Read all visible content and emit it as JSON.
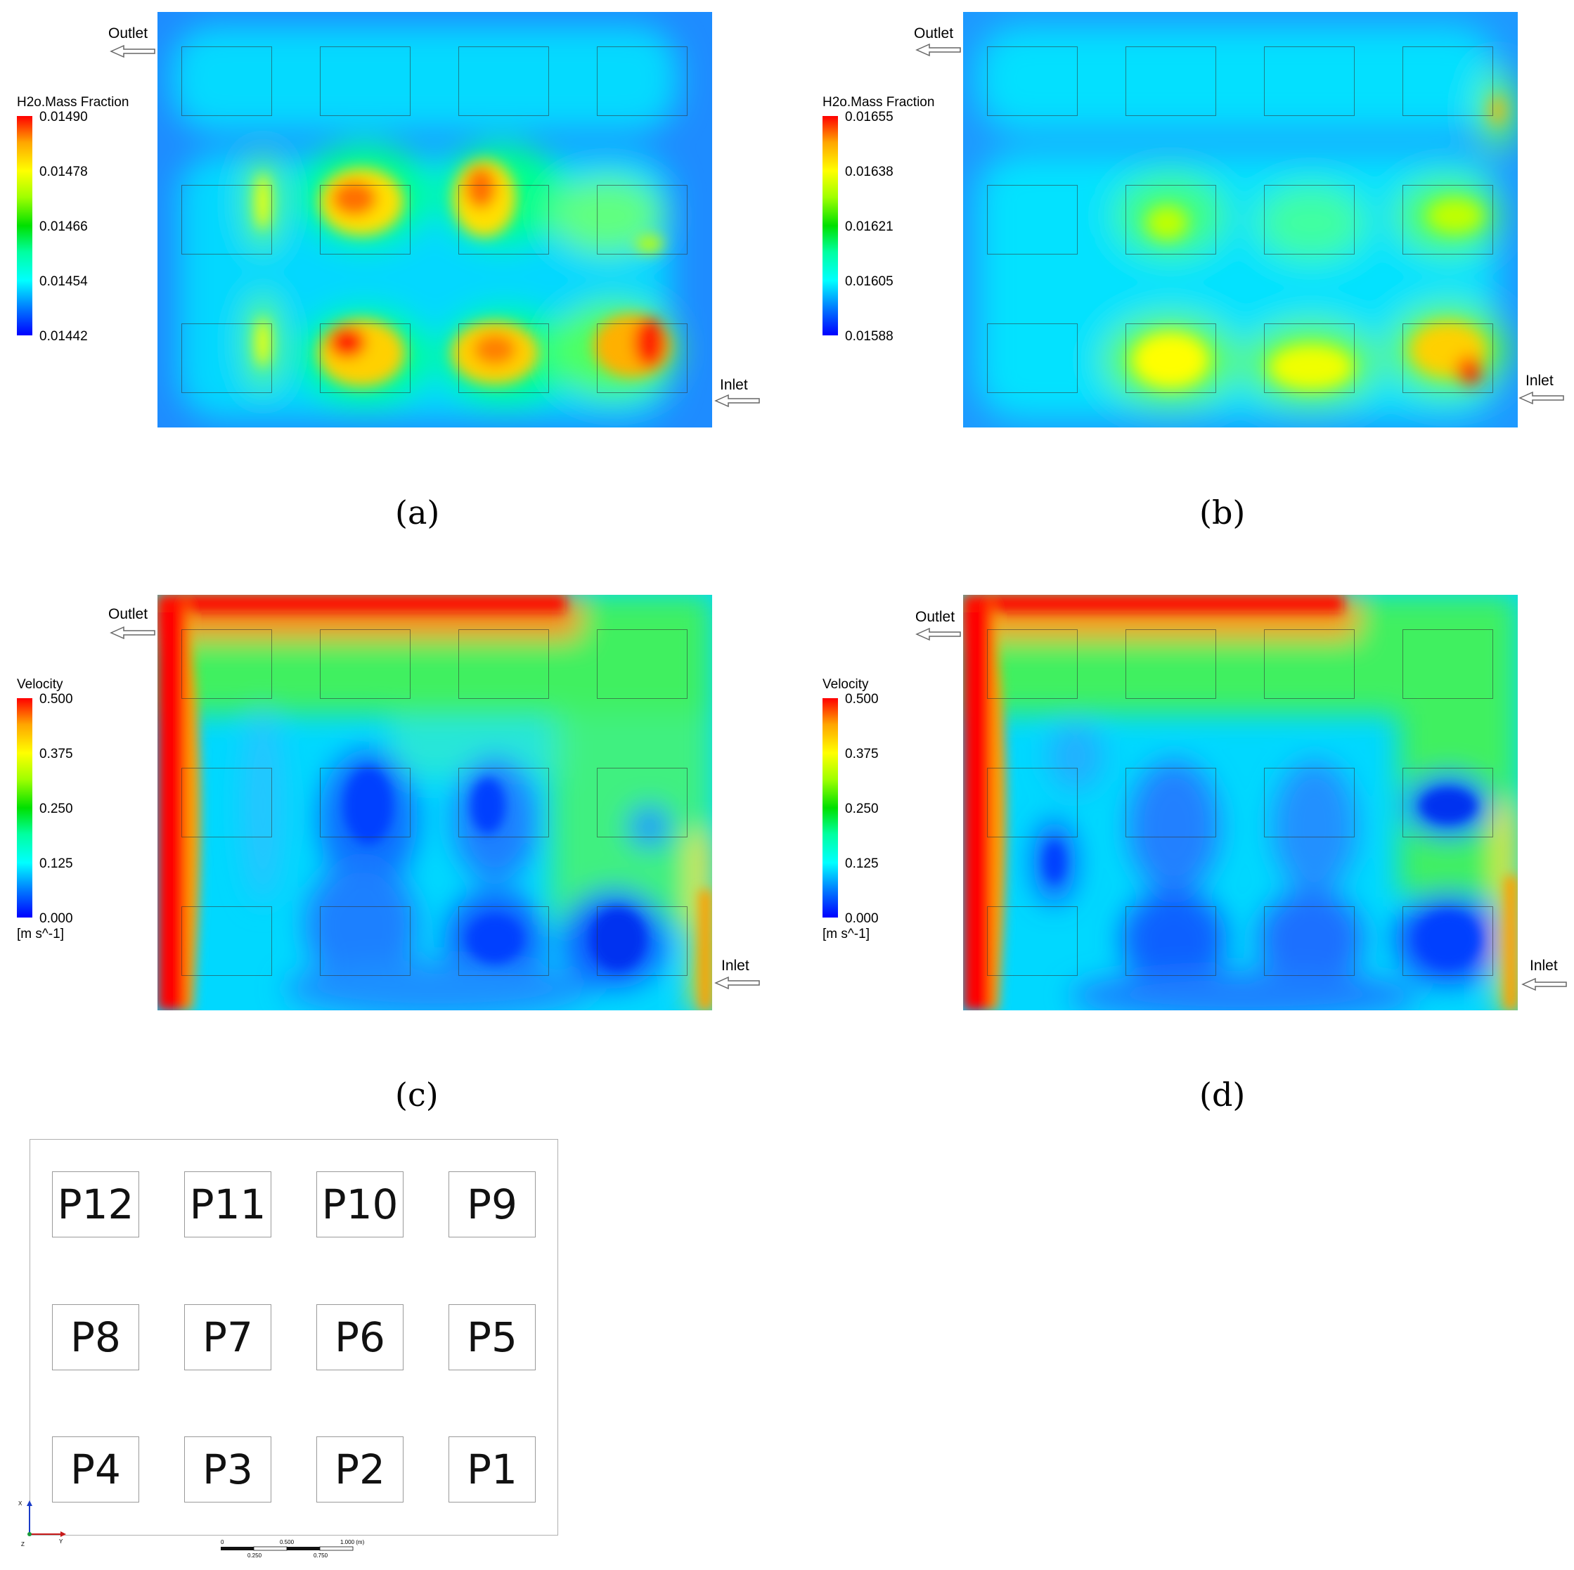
{
  "panels": [
    {
      "id": "a",
      "caption": "(a)",
      "legend": {
        "title": "H2o.Mass Fraction",
        "ticks": [
          "0.01490",
          "0.01478",
          "0.01466",
          "0.01454",
          "0.01442"
        ],
        "unit": ""
      },
      "outlet_label": "Outlet",
      "inlet_label": "Inlet"
    },
    {
      "id": "b",
      "caption": "(b)",
      "legend": {
        "title": "H2o.Mass Fraction",
        "ticks": [
          "0.01655",
          "0.01638",
          "0.01621",
          "0.01605",
          "0.01588"
        ],
        "unit": ""
      },
      "outlet_label": "Outlet",
      "inlet_label": "Inlet"
    },
    {
      "id": "c",
      "caption": "(c)",
      "legend": {
        "title": "Velocity",
        "ticks": [
          "0.500",
          "0.375",
          "0.250",
          "0.125",
          "0.000"
        ],
        "unit": "[m s^-1]"
      },
      "outlet_label": "Outlet",
      "inlet_label": "Inlet"
    },
    {
      "id": "d",
      "caption": "(d)",
      "legend": {
        "title": "Velocity",
        "ticks": [
          "0.500",
          "0.375",
          "0.250",
          "0.125",
          "0.000"
        ],
        "unit": "[m s^-1]"
      },
      "outlet_label": "Outlet",
      "inlet_label": "Inlet"
    }
  ],
  "layout": {
    "rows": [
      [
        "P12",
        "P11",
        "P10",
        "P9"
      ],
      [
        "P8",
        "P7",
        "P6",
        "P5"
      ],
      [
        "P4",
        "P3",
        "P2",
        "P1"
      ]
    ],
    "axes": {
      "x": "X",
      "y": "Y",
      "z": "Z"
    },
    "scale_top": [
      "0",
      "0.500",
      "1.000 (m)"
    ],
    "scale_bottom": [
      "0.250",
      "0.750"
    ]
  },
  "colors": {
    "background_a": "#1e8cff",
    "background_c": "#00d8ff",
    "colormap": [
      "#0000ff",
      "#00ffff",
      "#00e000",
      "#ffff00",
      "#ff0000"
    ]
  }
}
